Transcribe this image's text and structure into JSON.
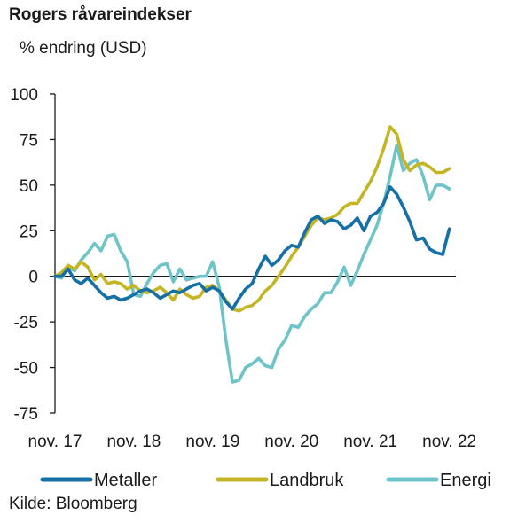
{
  "chart_data": {
    "type": "line",
    "title": "Rogers råvareindekser",
    "ylabel": "% endring (USD)",
    "source": "Kilde: Bloomberg",
    "ylim": [
      -75,
      100
    ],
    "yticks": [
      100,
      75,
      50,
      25,
      0,
      -25,
      -50,
      -75
    ],
    "xlim": [
      "2017-11",
      "2022-12"
    ],
    "xticks": [
      {
        "label": "nov. 17",
        "date": "2017-11"
      },
      {
        "label": "nov. 18",
        "date": "2018-11"
      },
      {
        "label": "nov. 19",
        "date": "2019-11"
      },
      {
        "label": "nov. 20",
        "date": "2020-11"
      },
      {
        "label": "nov. 21",
        "date": "2021-11"
      },
      {
        "label": "nov. 22",
        "date": "2022-11"
      }
    ],
    "grid": false,
    "legend": "bottom",
    "series": [
      {
        "name": "Metaller",
        "color": "#1570a6",
        "points": [
          [
            "2017-11",
            0
          ],
          [
            "2017-12",
            0
          ],
          [
            "2018-01",
            4
          ],
          [
            "2018-02",
            -2
          ],
          [
            "2018-03",
            -4
          ],
          [
            "2018-04",
            -1
          ],
          [
            "2018-05",
            -5
          ],
          [
            "2018-06",
            -9
          ],
          [
            "2018-07",
            -12
          ],
          [
            "2018-08",
            -11
          ],
          [
            "2018-09",
            -13
          ],
          [
            "2018-10",
            -12
          ],
          [
            "2018-11",
            -10
          ],
          [
            "2018-12",
            -8
          ],
          [
            "2019-01",
            -7
          ],
          [
            "2019-02",
            -9
          ],
          [
            "2019-03",
            -12
          ],
          [
            "2019-04",
            -10
          ],
          [
            "2019-05",
            -8
          ],
          [
            "2019-06",
            -9
          ],
          [
            "2019-07",
            -7
          ],
          [
            "2019-08",
            -5
          ],
          [
            "2019-09",
            -4
          ],
          [
            "2019-10",
            -8
          ],
          [
            "2019-11",
            -6
          ],
          [
            "2019-12",
            -8
          ],
          [
            "2020-01",
            -14
          ],
          [
            "2020-02",
            -18
          ],
          [
            "2020-03",
            -12
          ],
          [
            "2020-04",
            -7
          ],
          [
            "2020-05",
            -4
          ],
          [
            "2020-06",
            4
          ],
          [
            "2020-07",
            11
          ],
          [
            "2020-08",
            6
          ],
          [
            "2020-09",
            9
          ],
          [
            "2020-10",
            14
          ],
          [
            "2020-11",
            17
          ],
          [
            "2020-12",
            16
          ],
          [
            "2021-01",
            24
          ],
          [
            "2021-02",
            31
          ],
          [
            "2021-03",
            33
          ],
          [
            "2021-04",
            29
          ],
          [
            "2021-05",
            31
          ],
          [
            "2021-06",
            30
          ],
          [
            "2021-07",
            26
          ],
          [
            "2021-08",
            28
          ],
          [
            "2021-09",
            32
          ],
          [
            "2021-10",
            25
          ],
          [
            "2021-11",
            33
          ],
          [
            "2021-12",
            35
          ],
          [
            "2022-01",
            40
          ],
          [
            "2022-02",
            49
          ],
          [
            "2022-03",
            45
          ],
          [
            "2022-04",
            38
          ],
          [
            "2022-05",
            30
          ],
          [
            "2022-06",
            20
          ],
          [
            "2022-07",
            21
          ],
          [
            "2022-08",
            15
          ],
          [
            "2022-09",
            13
          ],
          [
            "2022-10",
            12
          ],
          [
            "2022-11",
            26
          ]
        ]
      },
      {
        "name": "Landbruk",
        "color": "#c3b524",
        "points": [
          [
            "2017-11",
            0
          ],
          [
            "2017-12",
            2
          ],
          [
            "2018-01",
            6
          ],
          [
            "2018-02",
            4
          ],
          [
            "2018-03",
            8
          ],
          [
            "2018-04",
            5
          ],
          [
            "2018-05",
            -2
          ],
          [
            "2018-06",
            1
          ],
          [
            "2018-07",
            -4
          ],
          [
            "2018-08",
            -3
          ],
          [
            "2018-09",
            -4
          ],
          [
            "2018-10",
            -7
          ],
          [
            "2018-11",
            -5
          ],
          [
            "2018-12",
            -8
          ],
          [
            "2019-01",
            -9
          ],
          [
            "2019-02",
            -8
          ],
          [
            "2019-03",
            -6
          ],
          [
            "2019-04",
            -9
          ],
          [
            "2019-05",
            -13
          ],
          [
            "2019-06",
            -7
          ],
          [
            "2019-07",
            -10
          ],
          [
            "2019-08",
            -12
          ],
          [
            "2019-09",
            -11
          ],
          [
            "2019-10",
            -6
          ],
          [
            "2019-11",
            -5
          ],
          [
            "2019-12",
            -8
          ],
          [
            "2020-01",
            -13
          ],
          [
            "2020-02",
            -18
          ],
          [
            "2020-03",
            -19
          ],
          [
            "2020-04",
            -17
          ],
          [
            "2020-05",
            -16
          ],
          [
            "2020-06",
            -13
          ],
          [
            "2020-07",
            -8
          ],
          [
            "2020-08",
            -5
          ],
          [
            "2020-09",
            0
          ],
          [
            "2020-10",
            5
          ],
          [
            "2020-11",
            11
          ],
          [
            "2020-12",
            16
          ],
          [
            "2021-01",
            22
          ],
          [
            "2021-02",
            28
          ],
          [
            "2021-03",
            32
          ],
          [
            "2021-04",
            31
          ],
          [
            "2021-05",
            32
          ],
          [
            "2021-06",
            34
          ],
          [
            "2021-07",
            38
          ],
          [
            "2021-08",
            40
          ],
          [
            "2021-09",
            40
          ],
          [
            "2021-10",
            46
          ],
          [
            "2021-11",
            52
          ],
          [
            "2021-12",
            60
          ],
          [
            "2022-01",
            70
          ],
          [
            "2022-02",
            82
          ],
          [
            "2022-03",
            78
          ],
          [
            "2022-04",
            64
          ],
          [
            "2022-05",
            58
          ],
          [
            "2022-06",
            61
          ],
          [
            "2022-07",
            62
          ],
          [
            "2022-08",
            60
          ],
          [
            "2022-09",
            57
          ],
          [
            "2022-10",
            57
          ],
          [
            "2022-11",
            59
          ]
        ]
      },
      {
        "name": "Energi",
        "color": "#6ec4c8",
        "points": [
          [
            "2017-11",
            0
          ],
          [
            "2017-12",
            -1
          ],
          [
            "2018-01",
            5
          ],
          [
            "2018-02",
            3
          ],
          [
            "2018-03",
            9
          ],
          [
            "2018-04",
            13
          ],
          [
            "2018-05",
            18
          ],
          [
            "2018-06",
            14
          ],
          [
            "2018-07",
            22
          ],
          [
            "2018-08",
            23
          ],
          [
            "2018-09",
            14
          ],
          [
            "2018-10",
            8
          ],
          [
            "2018-11",
            -10
          ],
          [
            "2018-12",
            -11
          ],
          [
            "2019-01",
            -4
          ],
          [
            "2019-02",
            2
          ],
          [
            "2019-03",
            6
          ],
          [
            "2019-04",
            7
          ],
          [
            "2019-05",
            -3
          ],
          [
            "2019-06",
            4
          ],
          [
            "2019-07",
            -2
          ],
          [
            "2019-08",
            -1
          ],
          [
            "2019-09",
            0
          ],
          [
            "2019-10",
            0
          ],
          [
            "2019-11",
            8
          ],
          [
            "2019-12",
            -6
          ],
          [
            "2020-01",
            -35
          ],
          [
            "2020-02",
            -58
          ],
          [
            "2020-03",
            -57
          ],
          [
            "2020-04",
            -50
          ],
          [
            "2020-05",
            -48
          ],
          [
            "2020-06",
            -45
          ],
          [
            "2020-07",
            -49
          ],
          [
            "2020-08",
            -50
          ],
          [
            "2020-09",
            -40
          ],
          [
            "2020-10",
            -35
          ],
          [
            "2020-11",
            -27
          ],
          [
            "2020-12",
            -28
          ],
          [
            "2021-01",
            -22
          ],
          [
            "2021-02",
            -18
          ],
          [
            "2021-03",
            -15
          ],
          [
            "2021-04",
            -9
          ],
          [
            "2021-05",
            -9
          ],
          [
            "2021-06",
            -3
          ],
          [
            "2021-07",
            5
          ],
          [
            "2021-08",
            -5
          ],
          [
            "2021-09",
            3
          ],
          [
            "2021-10",
            12
          ],
          [
            "2021-11",
            20
          ],
          [
            "2021-12",
            28
          ],
          [
            "2022-01",
            40
          ],
          [
            "2022-02",
            55
          ],
          [
            "2022-03",
            72
          ],
          [
            "2022-04",
            58
          ],
          [
            "2022-05",
            62
          ],
          [
            "2022-06",
            64
          ],
          [
            "2022-07",
            55
          ],
          [
            "2022-08",
            42
          ],
          [
            "2022-09",
            50
          ],
          [
            "2022-10",
            50
          ],
          [
            "2022-11",
            48
          ]
        ]
      }
    ]
  }
}
